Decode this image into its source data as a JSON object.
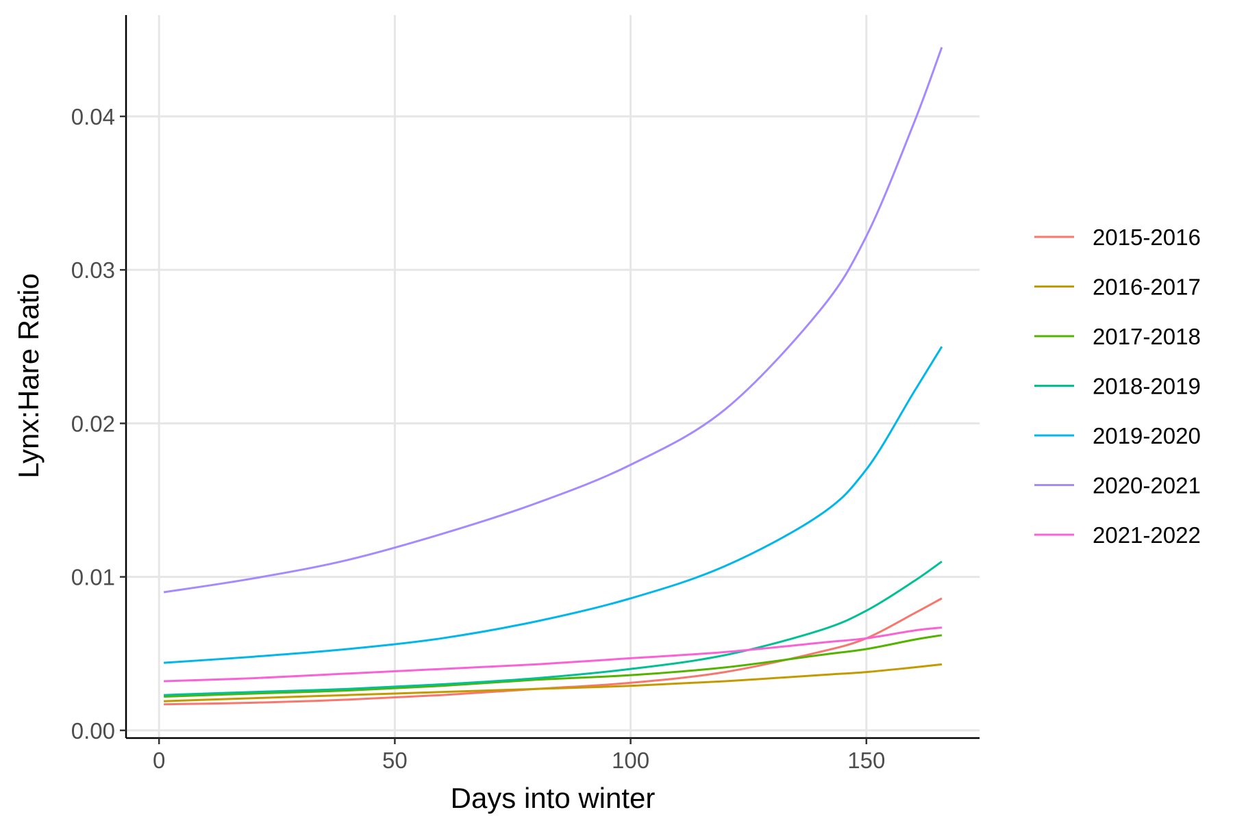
{
  "chart_data": {
    "type": "line",
    "xlabel": "Days into winter",
    "ylabel": "Lynx:Hare Ratio",
    "xlim": [
      -7,
      174
    ],
    "ylim": [
      -0.0005,
      0.0466
    ],
    "x_ticks": [
      0,
      50,
      100,
      150
    ],
    "x_tick_labels": [
      "0",
      "50",
      "100",
      "150"
    ],
    "y_ticks": [
      0.0,
      0.01,
      0.02,
      0.03,
      0.04
    ],
    "y_tick_labels": [
      "0.00",
      "0.01",
      "0.02",
      "0.03",
      "0.04"
    ],
    "grid": true,
    "legend_position": "right",
    "series": [
      {
        "name": "2015-2016",
        "color": "#F8766D",
        "x": [
          1,
          20,
          40,
          60,
          80,
          100,
          120,
          140,
          150,
          160,
          166
        ],
        "y": [
          0.0017,
          0.0018,
          0.002,
          0.0023,
          0.0027,
          0.0031,
          0.0038,
          0.0051,
          0.006,
          0.0076,
          0.0086
        ]
      },
      {
        "name": "2016-2017",
        "color": "#C49A00",
        "x": [
          1,
          20,
          40,
          60,
          80,
          100,
          120,
          140,
          150,
          160,
          166
        ],
        "y": [
          0.0019,
          0.0021,
          0.0023,
          0.0025,
          0.0027,
          0.0029,
          0.0032,
          0.0036,
          0.0038,
          0.0041,
          0.0043
        ]
      },
      {
        "name": "2017-2018",
        "color": "#53B400",
        "x": [
          1,
          20,
          40,
          60,
          80,
          100,
          120,
          140,
          150,
          160,
          166
        ],
        "y": [
          0.0022,
          0.0024,
          0.0026,
          0.0029,
          0.0033,
          0.0036,
          0.0041,
          0.0049,
          0.0053,
          0.0059,
          0.0062
        ]
      },
      {
        "name": "2018-2019",
        "color": "#00C094",
        "x": [
          1,
          20,
          40,
          60,
          80,
          100,
          120,
          140,
          150,
          160,
          166
        ],
        "y": [
          0.0023,
          0.0025,
          0.0027,
          0.003,
          0.0034,
          0.004,
          0.0049,
          0.0065,
          0.0078,
          0.0097,
          0.011
        ]
      },
      {
        "name": "2019-2020",
        "color": "#00B6EB",
        "x": [
          1,
          20,
          40,
          60,
          80,
          100,
          120,
          140,
          150,
          160,
          166
        ],
        "y": [
          0.0044,
          0.0048,
          0.0053,
          0.006,
          0.0071,
          0.0086,
          0.0107,
          0.014,
          0.017,
          0.022,
          0.025
        ]
      },
      {
        "name": "2020-2021",
        "color": "#A58AFF",
        "x": [
          1,
          20,
          40,
          60,
          80,
          100,
          120,
          140,
          150,
          160,
          166
        ],
        "y": [
          0.009,
          0.0099,
          0.0111,
          0.0128,
          0.0148,
          0.0173,
          0.0209,
          0.0273,
          0.0322,
          0.0395,
          0.0445
        ]
      },
      {
        "name": "2021-2022",
        "color": "#FB61D7",
        "x": [
          1,
          20,
          40,
          60,
          80,
          100,
          120,
          140,
          150,
          160,
          166
        ],
        "y": [
          0.0032,
          0.0034,
          0.0037,
          0.004,
          0.0043,
          0.0047,
          0.0051,
          0.0057,
          0.006,
          0.0065,
          0.0067
        ]
      }
    ]
  }
}
